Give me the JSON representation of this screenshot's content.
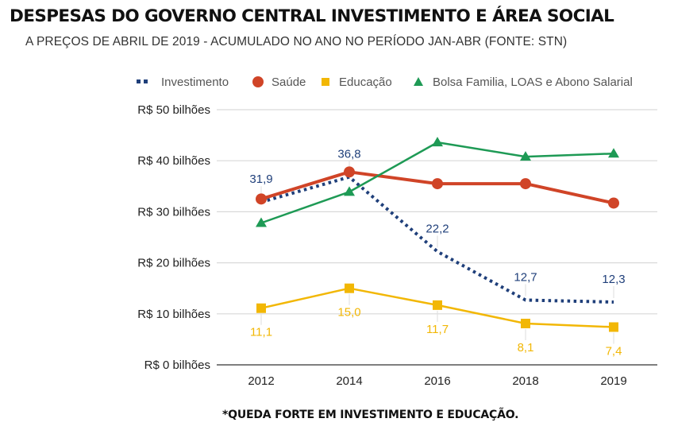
{
  "header": {
    "title": "DESPESAS DO GOVERNO CENTRAL INVESTIMENTO E ÁREA SOCIAL",
    "subtitle": "A PREÇOS DE ABRIL DE 2019 - ACUMULADO NO ANO NO PERÍODO JAN-ABR (FONTE: STN)"
  },
  "footnote": "*QUEDA FORTE EM INVESTIMENTO E EDUCAÇÃO.",
  "chart_data": {
    "type": "line",
    "title": "DESPESAS DO GOVERNO CENTRAL INVESTIMENTO E ÁREA SOCIAL",
    "subtitle": "A PREÇOS DE ABRIL DE 2019 - ACUMULADO NO ANO NO PERÍODO JAN-ABR (FONTE: STN)",
    "xlabel": "",
    "ylabel": "",
    "categories": [
      "2012",
      "2014",
      "2016",
      "2018",
      "2019"
    ],
    "ylim": [
      0,
      50
    ],
    "yticks": [
      0,
      10,
      20,
      30,
      40,
      50
    ],
    "ytick_labels": [
      "R$ 0 bilhões",
      "R$ 10 bilhões",
      "R$ 20 bilhões",
      "R$ 30 bilhões",
      "R$ 40 bilhões",
      "R$ 50 bilhões"
    ],
    "grid": true,
    "legend_position": "top",
    "series": [
      {
        "name": "Investimento",
        "color": "#1f3f7a",
        "style": "dotted",
        "marker": "none",
        "values": [
          31.9,
          36.8,
          22.2,
          12.7,
          12.3
        ],
        "labels": [
          "31,9",
          "36,8",
          "22,2",
          "12,7",
          "12,3"
        ],
        "label_position": "above"
      },
      {
        "name": "Saúde",
        "color": "#d04427",
        "style": "solid",
        "marker": "circle",
        "values": [
          32.5,
          37.8,
          35.5,
          35.5,
          31.7
        ],
        "labels": []
      },
      {
        "name": "Educação",
        "color": "#f2b705",
        "style": "solid",
        "marker": "square",
        "values": [
          11.1,
          15.0,
          11.7,
          8.1,
          7.4
        ],
        "labels": [
          "11,1",
          "15,0",
          "11,7",
          "8,1",
          "7,4"
        ],
        "label_position": "below"
      },
      {
        "name": "Bolsa Familia, LOAS e Abono Salarial",
        "color": "#1e9a55",
        "style": "solid",
        "marker": "triangle",
        "values": [
          27.8,
          33.9,
          43.6,
          40.8,
          41.4
        ],
        "labels": []
      }
    ]
  }
}
